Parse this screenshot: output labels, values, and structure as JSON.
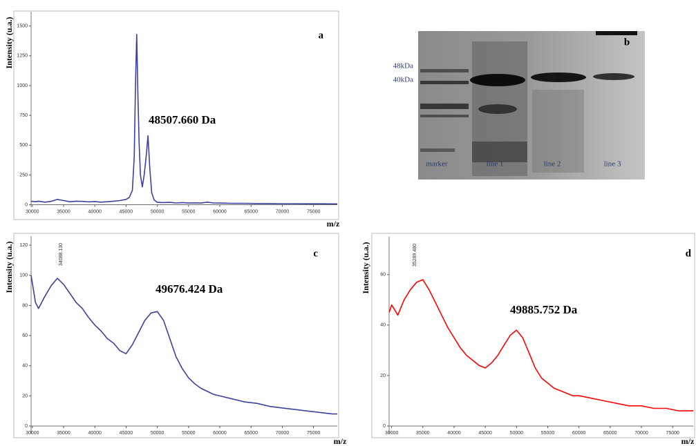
{
  "chart_data": [
    {
      "type": "line",
      "title": "a",
      "annotation": "48507.660 Da",
      "x_label": "m/z",
      "y_label": "Intensity (u.a.)",
      "color": "#3b3f9e",
      "x": [
        29800,
        30500,
        31000,
        32000,
        33000,
        34000,
        35000,
        36000,
        37000,
        38000,
        39000,
        40000,
        41000,
        42000,
        43000,
        44000,
        45000,
        45500,
        46000,
        46300,
        46500,
        46700,
        46900,
        47100,
        47300,
        47600,
        47900,
        48200,
        48500,
        48800,
        49100,
        49500,
        50000,
        51000,
        52000,
        53000,
        54000,
        55000,
        56000,
        57000,
        58000,
        59000,
        60000,
        62000,
        64000,
        66000,
        68000,
        70000,
        72000,
        74000,
        76000,
        78000,
        78800
      ],
      "values": [
        30,
        25,
        30,
        22,
        28,
        45,
        35,
        25,
        30,
        28,
        24,
        27,
        22,
        25,
        30,
        35,
        45,
        60,
        120,
        400,
        1000,
        1430,
        900,
        500,
        250,
        150,
        250,
        400,
        580,
        300,
        100,
        40,
        20,
        18,
        20,
        15,
        18,
        14,
        16,
        14,
        22,
        15,
        14,
        12,
        12,
        10,
        10,
        9,
        9,
        8,
        8,
        7,
        7
      ],
      "xlim": [
        29800,
        78800
      ],
      "ylim": [
        -20,
        1620
      ],
      "xticks": [
        30000,
        35000,
        40000,
        45000,
        50000,
        55000,
        60000,
        65000,
        70000,
        75000
      ],
      "yticks": [
        0,
        250,
        500,
        750,
        1000,
        1250,
        1500
      ]
    },
    {
      "type": "line",
      "title": "c",
      "annotation": "49676.424 Da",
      "peak_label": "34088.130",
      "x_label": "m/z",
      "y_label": "Intensity (u.a.)",
      "color": "#3b3f9e",
      "x": [
        29800,
        30500,
        31000,
        32000,
        33000,
        34000,
        35000,
        36000,
        37000,
        38000,
        39000,
        40000,
        41000,
        42000,
        43000,
        44000,
        45000,
        46000,
        47000,
        48000,
        49000,
        50000,
        51000,
        52000,
        53000,
        54000,
        55000,
        56000,
        57000,
        58000,
        59000,
        60000,
        62000,
        64000,
        66000,
        68000,
        70000,
        72000,
        74000,
        76000,
        78000,
        78800
      ],
      "values": [
        100,
        82,
        78,
        86,
        93,
        98,
        94,
        88,
        82,
        78,
        72,
        67,
        63,
        58,
        55,
        50,
        48,
        54,
        62,
        70,
        75,
        76,
        70,
        58,
        46,
        38,
        32,
        28,
        25,
        23,
        21,
        20,
        18,
        16,
        15,
        13,
        12,
        11,
        10,
        9,
        8,
        8
      ],
      "xlim": [
        29800,
        78800
      ],
      "ylim": [
        -5,
        126
      ],
      "xticks": [
        30000,
        35000,
        40000,
        45000,
        50000,
        55000,
        60000,
        65000,
        70000,
        75000
      ],
      "yticks": [
        0,
        20,
        40,
        60,
        80,
        100,
        120
      ]
    },
    {
      "type": "line",
      "title": "d",
      "annotation": "49885.752 Da",
      "peak_label": "35289.480",
      "x_label": "m/z",
      "y_label": "Intensity (u.a.)",
      "color": "#ff0000",
      "x": [
        29600,
        30000,
        31000,
        32000,
        33000,
        34000,
        35000,
        36000,
        37000,
        38000,
        39000,
        40000,
        41000,
        42000,
        43000,
        44000,
        45000,
        46000,
        47000,
        48000,
        49000,
        50000,
        51000,
        52000,
        53000,
        54000,
        55000,
        56000,
        57000,
        58000,
        59000,
        60000,
        62000,
        64000,
        66000,
        68000,
        70000,
        72000,
        74000,
        76000,
        78000,
        78300
      ],
      "values": [
        45,
        48,
        44,
        50,
        54,
        57,
        58,
        54,
        49,
        44,
        39,
        35,
        31,
        28,
        26,
        24,
        23,
        25,
        28,
        32,
        36,
        38,
        35,
        29,
        23,
        19,
        17,
        15,
        14,
        13,
        12,
        12,
        11,
        10,
        9,
        8,
        8,
        7,
        7,
        6,
        6,
        6
      ],
      "xlim": [
        29600,
        78300
      ],
      "ylim": [
        -3,
        75
      ],
      "xticks": [
        30000,
        35000,
        40000,
        45000,
        50000,
        55000,
        60000,
        65000,
        70000,
        75000
      ],
      "yticks": [
        0,
        20,
        40,
        60
      ]
    }
  ],
  "gel": {
    "title": "b",
    "markers": [
      "48kDa",
      "40kDa"
    ],
    "lanes": [
      "marker",
      "line 1",
      "line 2",
      "line 3"
    ]
  }
}
